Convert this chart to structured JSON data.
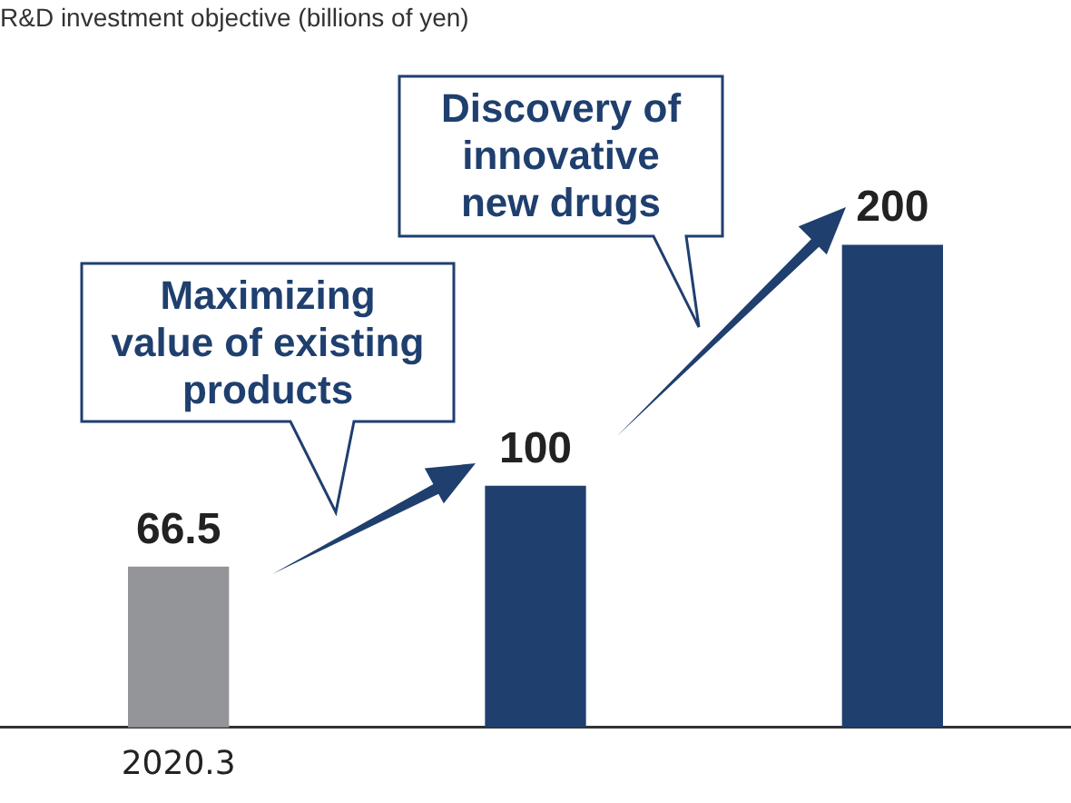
{
  "chart_data": {
    "type": "bar",
    "title": "R&D investment objective (billions of yen)",
    "categories": [
      "2020.3",
      null,
      null
    ],
    "values": [
      66.5,
      100,
      200
    ],
    "colors": [
      "#939598",
      "#1f3f6e",
      "#1f3f6e"
    ],
    "data_labels": true,
    "grid": false,
    "legend": false,
    "annotations": [
      "Maximizing value of existing products",
      "Discovery of innovative new drugs"
    ]
  }
}
